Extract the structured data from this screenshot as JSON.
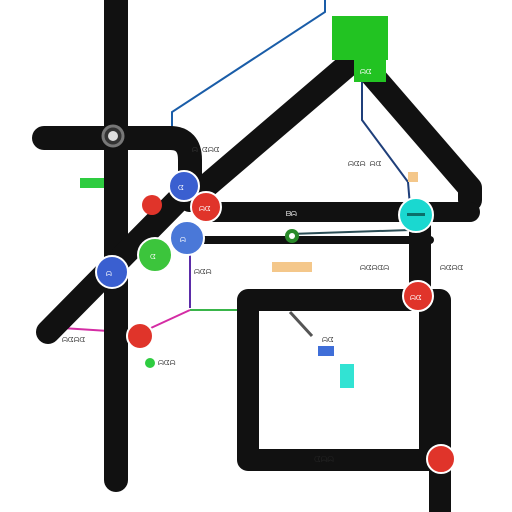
{
  "map": {
    "labels": {
      "road_mid": "ᗷᗣ",
      "road_bottom": "ᗧᗣᗣ",
      "box_orange": "",
      "label_right_a": "ᗣᗧᗣᗧᗣ",
      "label_right_b": "ᗣᗧᗣ ᗣᗧ",
      "label_far_right": "ᗣᗧᗣᗧ",
      "label_top_center": "ᗣ ᗧᗣᗧ",
      "label_left_mid": "ᗣᗧᗣ",
      "label_left_low": "ᗣᗧᗣᗧ",
      "label_green_small": "ᗣᗧᗣ",
      "label_center_low": "ᗣᗧ"
    },
    "colors": {
      "road": "#111111",
      "green_box": "#22c322",
      "teal_station": "#1ad8d0",
      "red_station": "#e0342a",
      "blue_station": "#3a5fd0",
      "green_station": "#3cc53c",
      "orange_label_bg": "#f4c78a",
      "line_blue": "#1a5da8",
      "line_pink": "#d42ca4",
      "line_green": "#39b54a",
      "cyan_marker": "#32e3d3",
      "blue_marker": "#3f6ed8"
    },
    "icons": [
      "subway-icon",
      "bus-icon",
      "tram-icon",
      "ferry-icon",
      "train-icon",
      "leaf-icon"
    ]
  }
}
